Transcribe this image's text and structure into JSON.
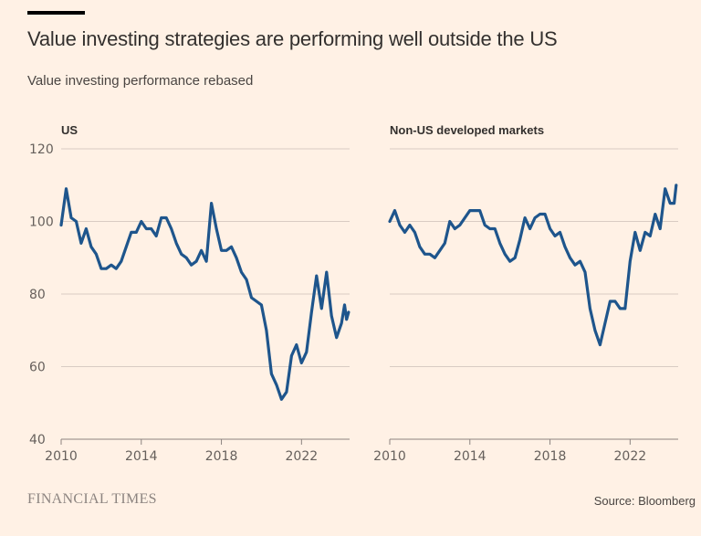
{
  "header": {
    "title": "Value investing strategies are performing well outside the US",
    "subtitle": "Value investing performance rebased"
  },
  "footer": {
    "brand": "FINANCIAL TIMES",
    "source": "Source: Bloomberg"
  },
  "colors": {
    "line": "#1e558c",
    "grid": "#d9ccc3",
    "axis": "#8c8480",
    "background": "#fff1e5"
  },
  "chart_data": [
    {
      "type": "line",
      "title": "US",
      "xlabel": "",
      "ylabel": "",
      "xlim": [
        2010,
        2024.4
      ],
      "ylim": [
        40,
        120
      ],
      "yticks": [
        40,
        60,
        80,
        100,
        120
      ],
      "xticks": [
        2010,
        2014,
        2018,
        2022
      ],
      "grid": true,
      "series": [
        {
          "name": "US",
          "x": [
            2010.0,
            2010.25,
            2010.5,
            2010.75,
            2011.0,
            2011.25,
            2011.5,
            2011.75,
            2012.0,
            2012.25,
            2012.5,
            2012.75,
            2013.0,
            2013.25,
            2013.5,
            2013.75,
            2014.0,
            2014.25,
            2014.5,
            2014.75,
            2015.0,
            2015.25,
            2015.5,
            2015.75,
            2016.0,
            2016.25,
            2016.5,
            2016.75,
            2017.0,
            2017.25,
            2017.5,
            2017.75,
            2018.0,
            2018.25,
            2018.5,
            2018.75,
            2019.0,
            2019.25,
            2019.5,
            2019.75,
            2020.0,
            2020.25,
            2020.5,
            2020.75,
            2021.0,
            2021.25,
            2021.5,
            2021.75,
            2022.0,
            2022.25,
            2022.5,
            2022.75,
            2023.0,
            2023.25,
            2023.5,
            2023.75,
            2024.0,
            2024.15,
            2024.25,
            2024.35
          ],
          "values": [
            99,
            109,
            101,
            100,
            94,
            98,
            93,
            91,
            87,
            87,
            88,
            87,
            89,
            93,
            97,
            97,
            100,
            98,
            98,
            96,
            101,
            101,
            98,
            94,
            91,
            90,
            88,
            89,
            92,
            89,
            105,
            98,
            92,
            92,
            93,
            90,
            86,
            84,
            79,
            78,
            77,
            70,
            58,
            55,
            51,
            53,
            63,
            66,
            61,
            64,
            75,
            85,
            76,
            86,
            74,
            68,
            72,
            77,
            73,
            75
          ]
        }
      ]
    },
    {
      "type": "line",
      "title": "Non-US developed markets",
      "xlabel": "",
      "ylabel": "",
      "xlim": [
        2010,
        2024.4
      ],
      "ylim": [
        40,
        120
      ],
      "yticks": [
        40,
        60,
        80,
        100,
        120
      ],
      "xticks": [
        2010,
        2014,
        2018,
        2022
      ],
      "grid": true,
      "series": [
        {
          "name": "Non-US developed markets",
          "x": [
            2010.0,
            2010.25,
            2010.5,
            2010.75,
            2011.0,
            2011.25,
            2011.5,
            2011.75,
            2012.0,
            2012.25,
            2012.5,
            2012.75,
            2013.0,
            2013.25,
            2013.5,
            2013.75,
            2014.0,
            2014.25,
            2014.5,
            2014.75,
            2015.0,
            2015.25,
            2015.5,
            2015.75,
            2016.0,
            2016.25,
            2016.5,
            2016.75,
            2017.0,
            2017.25,
            2017.5,
            2017.75,
            2018.0,
            2018.25,
            2018.5,
            2018.75,
            2019.0,
            2019.25,
            2019.5,
            2019.75,
            2020.0,
            2020.25,
            2020.5,
            2020.75,
            2021.0,
            2021.25,
            2021.5,
            2021.75,
            2022.0,
            2022.25,
            2022.5,
            2022.75,
            2023.0,
            2023.25,
            2023.5,
            2023.75,
            2024.0,
            2024.2,
            2024.3
          ],
          "values": [
            100,
            103,
            99,
            97,
            99,
            97,
            93,
            91,
            91,
            90,
            92,
            94,
            100,
            98,
            99,
            101,
            103,
            103,
            103,
            99,
            98,
            98,
            94,
            91,
            89,
            90,
            95,
            101,
            98,
            101,
            102,
            102,
            98,
            96,
            97,
            93,
            90,
            88,
            89,
            86,
            76,
            70,
            66,
            72,
            78,
            78,
            76,
            76,
            89,
            97,
            92,
            97,
            96,
            102,
            98,
            109,
            105,
            105,
            110
          ]
        }
      ]
    }
  ]
}
